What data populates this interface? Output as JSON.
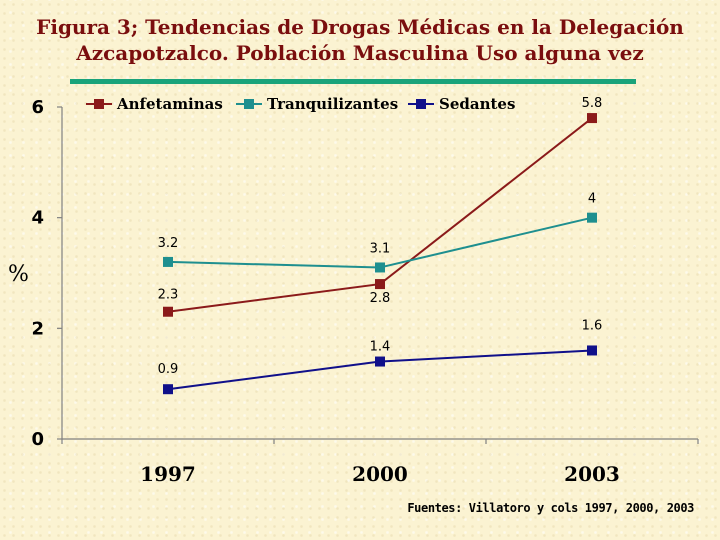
{
  "title": {
    "line1": "Figura 3; Tendencias de Drogas Médicas en  la Delegación",
    "line2": "Azcapotzalco. Población Masculina Uso alguna vez"
  },
  "source": "Fuentes: Villatoro y cols 1997, 2000, 2003",
  "colors": {
    "title": "#7a0e0e",
    "title_rule": "#1aa37a",
    "background": "#fbf3d2"
  },
  "chart_data": {
    "type": "line",
    "ylabel": "%",
    "xlabel": "",
    "categories": [
      "1997",
      "2000",
      "2003"
    ],
    "ylim": [
      0,
      6
    ],
    "yticks": [
      0,
      2,
      4,
      6
    ],
    "grid": false,
    "legend_position": "top",
    "series": [
      {
        "name": "Anfetaminas",
        "color": "#8b1a1a",
        "values": [
          2.3,
          2.8,
          5.8
        ],
        "labels": [
          "2.3",
          "2.8",
          "5.8"
        ]
      },
      {
        "name": "Tranquilizantes",
        "color": "#1e8f8f",
        "values": [
          3.2,
          3.1,
          4
        ],
        "labels": [
          "3.2",
          "3.1",
          "4"
        ]
      },
      {
        "name": "Sedantes",
        "color": "#10108a",
        "values": [
          0.9,
          1.4,
          1.6
        ],
        "labels": [
          "0.9",
          "1.4",
          "1.6"
        ]
      }
    ]
  }
}
